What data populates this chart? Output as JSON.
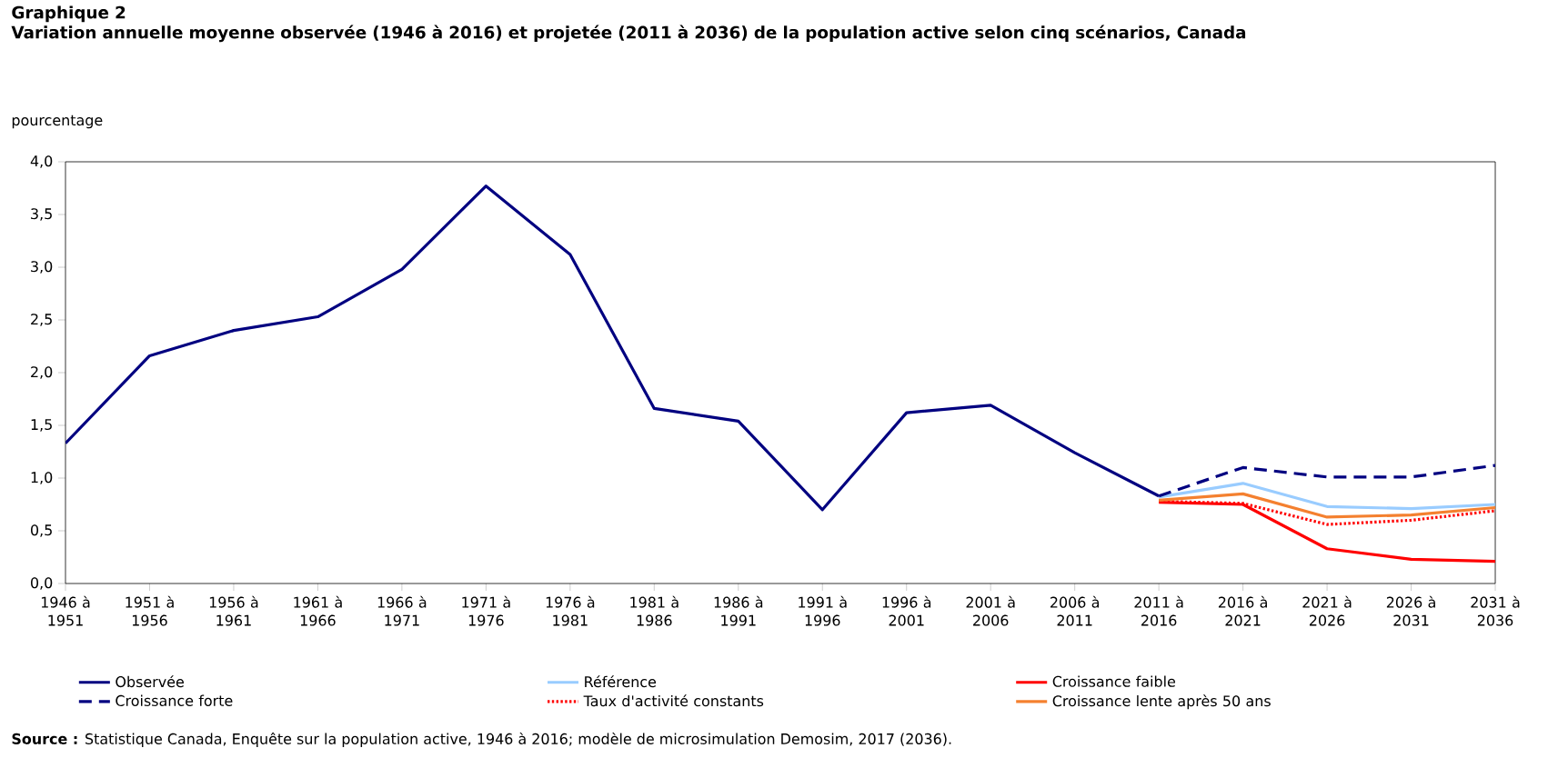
{
  "chart_data": {
    "type": "line",
    "title": "Graphique  2",
    "subtitle": "Variation annuelle moyenne observée (1946 à 2016) et projetée (2011 à 2036) de la population active selon cinq scénarios, Canada",
    "ylabel": "pourcentage",
    "categories": [
      "1946 à 1951",
      "1951 à 1956",
      "1956 à 1961",
      "1961 à 1966",
      "1966 à 1971",
      "1971 à 1976",
      "1976 à 1981",
      "1981 à 1986",
      "1986 à 1991",
      "1991 à 1996",
      "1996 à 2001",
      "2001 à 2006",
      "2006 à 2011",
      "2011 à 2016",
      "2016 à 2021",
      "2021 à 2026",
      "2026 à 2031",
      "2031 à 2036"
    ],
    "series": [
      {
        "name": "Observée",
        "color": "#000080",
        "line_style": "solid",
        "values": [
          1.33,
          2.16,
          2.4,
          2.53,
          2.98,
          3.77,
          3.12,
          1.66,
          1.54,
          0.7,
          1.62,
          1.69,
          1.24,
          0.83,
          null,
          null,
          null,
          null
        ]
      },
      {
        "name": "Référence",
        "color": "#99ccff",
        "line_style": "solid",
        "values": [
          null,
          null,
          null,
          null,
          null,
          null,
          null,
          null,
          null,
          null,
          null,
          null,
          null,
          0.82,
          0.95,
          0.73,
          0.71,
          0.75
        ]
      },
      {
        "name": "Croissance faible",
        "color": "#ff0000",
        "line_style": "solid",
        "values": [
          null,
          null,
          null,
          null,
          null,
          null,
          null,
          null,
          null,
          null,
          null,
          null,
          null,
          0.77,
          0.75,
          0.33,
          0.23,
          0.21
        ]
      },
      {
        "name": "Croissance forte",
        "color": "#000080",
        "line_style": "dashed",
        "values": [
          null,
          null,
          null,
          null,
          null,
          null,
          null,
          null,
          null,
          null,
          null,
          null,
          null,
          0.83,
          1.1,
          1.01,
          1.01,
          1.12
        ]
      },
      {
        "name": "Taux d'activité constants",
        "color": "#ff0000",
        "line_style": "dotted",
        "values": [
          null,
          null,
          null,
          null,
          null,
          null,
          null,
          null,
          null,
          null,
          null,
          null,
          null,
          0.78,
          0.76,
          0.56,
          0.6,
          0.69
        ]
      },
      {
        "name": "Croissance lente après 50 ans",
        "color": "#f4802f",
        "line_style": "solid",
        "values": [
          null,
          null,
          null,
          null,
          null,
          null,
          null,
          null,
          null,
          null,
          null,
          null,
          null,
          0.79,
          0.85,
          0.63,
          0.65,
          0.72
        ]
      }
    ],
    "ylim": [
      0,
      4
    ],
    "yticks": [
      {
        "value": 0,
        "label": "0,0"
      },
      {
        "value": 0.5,
        "label": "0,5"
      },
      {
        "value": 1,
        "label": "1,0"
      },
      {
        "value": 1.5,
        "label": "1,5"
      },
      {
        "value": 2,
        "label": "2,0"
      },
      {
        "value": 2.5,
        "label": "2,5"
      },
      {
        "value": 3,
        "label": "3,0"
      },
      {
        "value": 3.5,
        "label": "3,5"
      },
      {
        "value": 4,
        "label": "4,0"
      }
    ],
    "grid": false,
    "legend": "bottom",
    "marker": "none",
    "annotations": [
      "**Source :** Statistique Canada, Enquête sur la population active, 1946 à 2016; modèle de microsimulation Demosim, 2017 (2036)."
    ]
  }
}
